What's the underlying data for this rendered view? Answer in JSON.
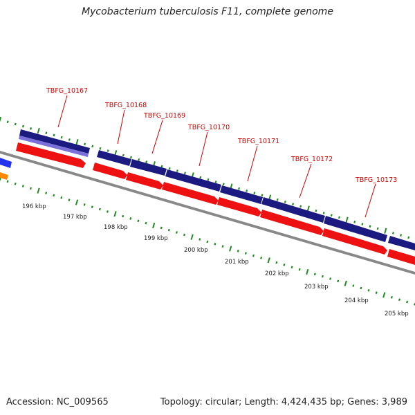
{
  "header": {
    "title": "Mycobacterium tuberculosis F11, complete genome"
  },
  "footer": {
    "accession": "Accession: NC_009565",
    "summary": "Topology: circular; Length: 4,424,435 bp; Genes: 3,989"
  },
  "colors": {
    "feature_dark": "#1a1a80",
    "feature_light": "#7b6fd8",
    "gene_red": "#ee1111",
    "label_red": "#cc0000",
    "backbone": "#888888",
    "tick_green": "#1f8a1f",
    "offscreen_blue": "#2233ee",
    "offscreen_orange": "#ff8800"
  },
  "gene_labels": [
    {
      "text": "TBFG_10167"
    },
    {
      "text": "TBFG_10168"
    },
    {
      "text": "TBFG_10169"
    },
    {
      "text": "TBFG_10170"
    },
    {
      "text": "TBFG_10171"
    },
    {
      "text": "TBFG_10172"
    },
    {
      "text": "TBFG_10173"
    }
  ],
  "scale_ticks": [
    {
      "text": "196 kbp"
    },
    {
      "text": "197 kbp"
    },
    {
      "text": "198 kbp"
    },
    {
      "text": "199 kbp"
    },
    {
      "text": "200 kbp"
    },
    {
      "text": "201 kbp"
    },
    {
      "text": "202 kbp"
    },
    {
      "text": "203 kbp"
    },
    {
      "text": "204 kbp"
    },
    {
      "text": "205 kbp"
    }
  ]
}
